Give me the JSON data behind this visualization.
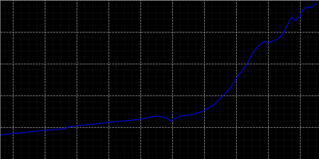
{
  "background_color": "#000000",
  "plot_bg_color": "#000000",
  "line_color": "#0000dd",
  "grid_major_color": "#aaaaaa",
  "grid_minor_color": "#555555",
  "years": [
    1812,
    1820,
    1830,
    1840,
    1852,
    1855,
    1861,
    1867,
    1871,
    1875,
    1880,
    1885,
    1890,
    1895,
    1900,
    1905,
    1910,
    1916,
    1919,
    1925,
    1933,
    1939,
    1946,
    1950,
    1956,
    1961,
    1964,
    1967,
    1970,
    1973,
    1975,
    1978,
    1980,
    1983,
    1985,
    1987,
    1990,
    1991,
    1992,
    1993,
    1994,
    1995,
    1996,
    1997,
    1998,
    1999,
    2000,
    2001,
    2002,
    2003,
    2004,
    2005,
    2006,
    2007,
    2008,
    2009,
    2010
  ],
  "population": [
    7500,
    8000,
    8500,
    9000,
    9500,
    10000,
    10500,
    10800,
    11000,
    11200,
    11500,
    11800,
    12000,
    12200,
    12500,
    13000,
    13500,
    13000,
    12000,
    13500,
    14000,
    15000,
    17000,
    19000,
    22000,
    26000,
    28000,
    30000,
    33000,
    35000,
    36000,
    37000,
    36500,
    37000,
    37500,
    38000,
    40000,
    41000,
    42000,
    43000,
    44000,
    44500,
    44000,
    43500,
    44000,
    44500,
    45000,
    46000,
    47000,
    47500,
    47500,
    47800,
    47500,
    47800,
    48000,
    48500,
    49000
  ],
  "xlim": [
    1812,
    2012
  ],
  "ylim": [
    0,
    50000
  ],
  "xtick_major_step": 20,
  "xtick_minor_step": 5,
  "ytick_major_step": 10000,
  "ytick_minor_step": 2000,
  "figsize": [
    4.0,
    2.0
  ],
  "dpi": 100
}
